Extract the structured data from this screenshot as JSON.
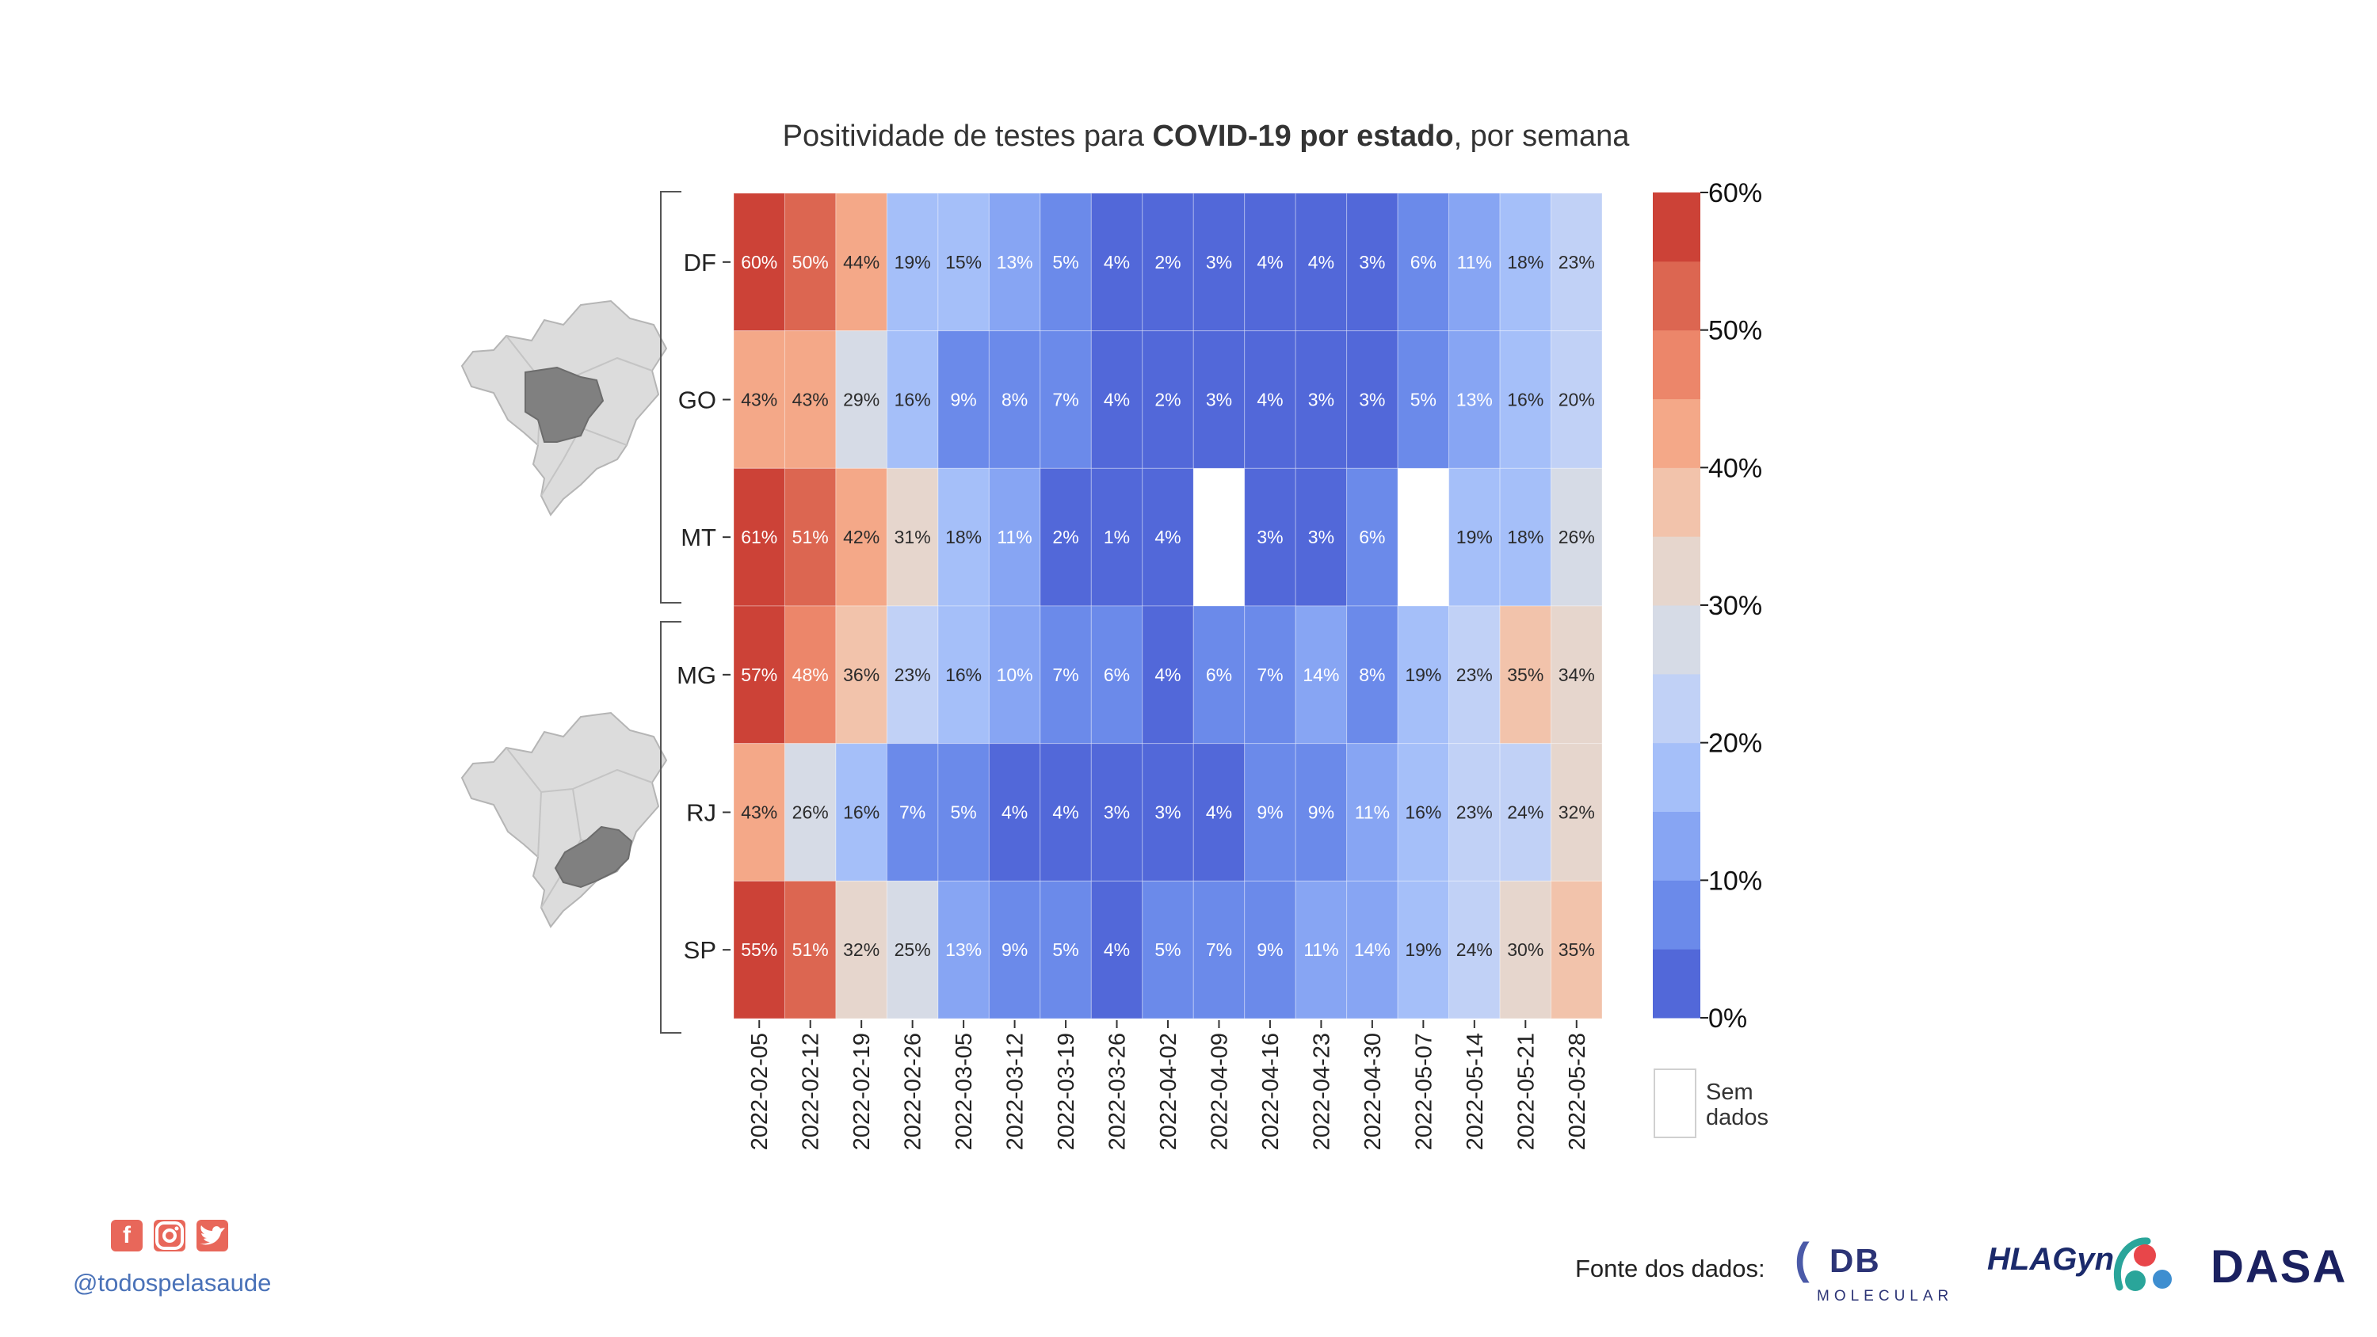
{
  "chart_data": {
    "type": "heatmap",
    "title_parts": [
      {
        "text": "Positividade de testes para ",
        "bold": false
      },
      {
        "text": "COVID-19 por estado",
        "bold": true
      },
      {
        "text": ", por semana",
        "bold": false
      }
    ],
    "x": [
      "2022-02-05",
      "2022-02-12",
      "2022-02-19",
      "2022-02-26",
      "2022-03-05",
      "2022-03-12",
      "2022-03-19",
      "2022-03-26",
      "2022-04-02",
      "2022-04-09",
      "2022-04-16",
      "2022-04-23",
      "2022-04-30",
      "2022-05-07",
      "2022-05-14",
      "2022-05-21",
      "2022-05-28"
    ],
    "y": [
      "DF",
      "GO",
      "MT",
      "MG",
      "RJ",
      "SP"
    ],
    "groups": [
      [
        "DF",
        "GO",
        "MT"
      ],
      [
        "MG",
        "RJ",
        "SP"
      ]
    ],
    "values": [
      [
        60,
        50,
        44,
        19,
        15,
        13,
        5,
        4,
        2,
        3,
        4,
        4,
        3,
        6,
        11,
        18,
        23
      ],
      [
        43,
        43,
        29,
        16,
        9,
        8,
        7,
        4,
        2,
        3,
        4,
        3,
        3,
        5,
        13,
        16,
        20
      ],
      [
        61,
        51,
        42,
        31,
        18,
        11,
        2,
        1,
        4,
        null,
        3,
        3,
        6,
        null,
        19,
        18,
        26
      ],
      [
        57,
        48,
        36,
        23,
        16,
        10,
        7,
        6,
        4,
        6,
        7,
        14,
        8,
        19,
        23,
        35,
        34
      ],
      [
        43,
        26,
        16,
        7,
        5,
        4,
        4,
        3,
        3,
        4,
        9,
        9,
        11,
        16,
        23,
        24,
        32
      ],
      [
        55,
        51,
        32,
        25,
        13,
        9,
        5,
        4,
        5,
        7,
        9,
        11,
        14,
        19,
        24,
        30,
        35
      ]
    ],
    "value_suffix": "%",
    "colorbar": {
      "range": [
        0,
        60
      ],
      "ticks": [
        "0%",
        "10%",
        "20%",
        "30%",
        "40%",
        "50%",
        "60%"
      ],
      "colors": [
        "#5268d9",
        "#6b8aea",
        "#87a5f3",
        "#a5bff9",
        "#c1d1f6",
        "#d6dbe6",
        "#e6d6cd",
        "#f2c3ab",
        "#f4a888",
        "#ec866a",
        "#dc6651",
        "#cc4237"
      ]
    },
    "missing_label": "Sem dados",
    "missing_color": "#ffffff",
    "map_colors": {
      "base": "#dcdcdc",
      "highlight": "#808080"
    }
  },
  "footer": {
    "icons": [
      "facebook-icon",
      "instagram-icon",
      "twitter-icon"
    ],
    "accent_color": "#e8675a",
    "handle": "@todospelasaude",
    "source_label": "Fonte dos dados:",
    "logos": {
      "db_mark": "(",
      "db_text": "DB",
      "db_sub": "MOLECULAR",
      "hla": "HLAGyn.",
      "dasa": "DASA"
    }
  }
}
